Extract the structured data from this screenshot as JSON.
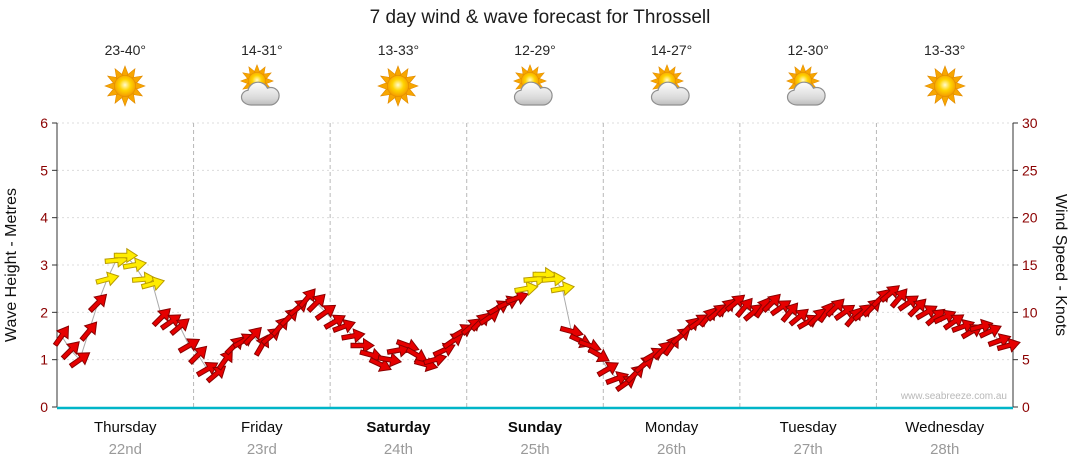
{
  "title": "7 day wind & wave forecast for Throssell",
  "watermark": "www.seabreeze.com.au",
  "days": [
    {
      "name": "Thursday",
      "date": "22nd",
      "temp": "23-40°",
      "icon": "sunny",
      "bold": false
    },
    {
      "name": "Friday",
      "date": "23rd",
      "temp": "14-31°",
      "icon": "partly-cloudy",
      "bold": false
    },
    {
      "name": "Saturday",
      "date": "24th",
      "temp": "13-33°",
      "icon": "sunny",
      "bold": true
    },
    {
      "name": "Sunday",
      "date": "25th",
      "temp": "12-29°",
      "icon": "partly-cloudy",
      "bold": true
    },
    {
      "name": "Monday",
      "date": "26th",
      "temp": "14-27°",
      "icon": "partly-cloudy",
      "bold": false
    },
    {
      "name": "Tuesday",
      "date": "27th",
      "temp": "12-30°",
      "icon": "partly-cloudy",
      "bold": false
    },
    {
      "name": "Wednesday",
      "date": "28th",
      "temp": "13-33°",
      "icon": "sunny",
      "bold": false
    }
  ],
  "chart_data": {
    "type": "scatter",
    "subtype": "wind-direction-arrows",
    "title": "7 day wind & wave forecast for Throssell",
    "left_axis": {
      "label": "Wave Height - Metres",
      "min": 0,
      "max": 6,
      "ticks": [
        0,
        1,
        2,
        3,
        4,
        5,
        6
      ]
    },
    "right_axis": {
      "label": "Wind Speed - Knots",
      "min": 0,
      "max": 30,
      "ticks": [
        0,
        5,
        10,
        15,
        20,
        25,
        30
      ]
    },
    "grid": {
      "vertical_day_separators": true,
      "horizontal_dotted": true
    },
    "colors": {
      "red_fill": "#e60000",
      "red_stroke": "#8a0000",
      "yellow_fill": "#ffec00",
      "yellow_stroke": "#b89b00",
      "baseline": "#00b5c8",
      "day_gridline": "#b8b8b8",
      "metre_gridline": "#dcdcdc",
      "tick_label": "#8b0000",
      "trend_line": "#aaaaaa"
    },
    "arrows_per_day": 15,
    "arrow_format": [
      "knots",
      "direction_deg(0=right,negative=up)",
      "color"
    ],
    "arrows": [
      [
        7.5,
        -55,
        "red"
      ],
      [
        6,
        -45,
        "red"
      ],
      [
        5,
        -35,
        "red"
      ],
      [
        8,
        -50,
        "red"
      ],
      [
        11,
        -45,
        "red"
      ],
      [
        13.5,
        -15,
        "yellow"
      ],
      [
        15.5,
        -5,
        "yellow"
      ],
      [
        16,
        0,
        "yellow"
      ],
      [
        15,
        -10,
        "yellow"
      ],
      [
        13.5,
        -5,
        "yellow"
      ],
      [
        13,
        -15,
        "yellow"
      ],
      [
        9.5,
        -45,
        "red"
      ],
      [
        9,
        -35,
        "red"
      ],
      [
        8.5,
        -40,
        "red"
      ],
      [
        6.5,
        -30,
        "red"
      ],
      [
        5.5,
        -45,
        "red"
      ],
      [
        4,
        -30,
        "red"
      ],
      [
        3.5,
        -40,
        "red"
      ],
      [
        5,
        -55,
        "red"
      ],
      [
        6.5,
        -45,
        "red"
      ],
      [
        7,
        -30,
        "red"
      ],
      [
        7.5,
        -45,
        "red"
      ],
      [
        6.5,
        -60,
        "red"
      ],
      [
        7.5,
        -40,
        "red"
      ],
      [
        8.5,
        -50,
        "red"
      ],
      [
        9.5,
        -45,
        "red"
      ],
      [
        10.5,
        -40,
        "red"
      ],
      [
        11.5,
        -50,
        "red"
      ],
      [
        11,
        -45,
        "red"
      ],
      [
        10,
        -35,
        "red"
      ],
      [
        9,
        -30,
        "red"
      ],
      [
        8.5,
        -20,
        "red"
      ],
      [
        7.5,
        -10,
        "red"
      ],
      [
        6.5,
        0,
        "red"
      ],
      [
        5.5,
        15,
        "red"
      ],
      [
        4.5,
        25,
        "red"
      ],
      [
        5,
        10,
        "red"
      ],
      [
        6,
        -10,
        "red"
      ],
      [
        6.5,
        20,
        "red"
      ],
      [
        5.5,
        30,
        "red"
      ],
      [
        4.5,
        15,
        "red"
      ],
      [
        5,
        -15,
        "red"
      ],
      [
        6,
        -25,
        "red"
      ],
      [
        7,
        -35,
        "red"
      ],
      [
        8,
        -30,
        "red"
      ],
      [
        8.5,
        -40,
        "red"
      ],
      [
        9,
        -45,
        "red"
      ],
      [
        9.5,
        -35,
        "red"
      ],
      [
        10.5,
        -30,
        "red"
      ],
      [
        11,
        -25,
        "red"
      ],
      [
        11.5,
        -20,
        "red"
      ],
      [
        12.5,
        -10,
        "yellow"
      ],
      [
        13.5,
        -5,
        "yellow"
      ],
      [
        14,
        0,
        "yellow"
      ],
      [
        13.5,
        -5,
        "yellow"
      ],
      [
        12.5,
        -10,
        "yellow"
      ],
      [
        8,
        15,
        "red"
      ],
      [
        7,
        25,
        "red"
      ],
      [
        6.5,
        20,
        "red"
      ],
      [
        5.5,
        30,
        "red"
      ],
      [
        4,
        -30,
        "red"
      ],
      [
        3,
        -20,
        "red"
      ],
      [
        2.5,
        -35,
        "red"
      ],
      [
        3.5,
        -45,
        "red"
      ],
      [
        4.5,
        -40,
        "red"
      ],
      [
        5.5,
        -30,
        "red"
      ],
      [
        6,
        -45,
        "red"
      ],
      [
        6.5,
        -55,
        "red"
      ],
      [
        7.5,
        -40,
        "red"
      ],
      [
        8.5,
        -45,
        "red"
      ],
      [
        9,
        -35,
        "red"
      ],
      [
        9.5,
        -50,
        "red"
      ],
      [
        10,
        -40,
        "red"
      ],
      [
        10.5,
        -45,
        "red"
      ],
      [
        11,
        -40,
        "red"
      ],
      [
        10.5,
        -50,
        "red"
      ],
      [
        10,
        -40,
        "red"
      ],
      [
        10.5,
        -55,
        "red"
      ],
      [
        11,
        -45,
        "red"
      ],
      [
        10.5,
        -35,
        "red"
      ],
      [
        10,
        -50,
        "red"
      ],
      [
        9.5,
        -40,
        "red"
      ],
      [
        9,
        -30,
        "red"
      ],
      [
        9.5,
        -45,
        "red"
      ],
      [
        10,
        -55,
        "red"
      ],
      [
        10.5,
        -45,
        "red"
      ],
      [
        10,
        -35,
        "red"
      ],
      [
        9.5,
        -50,
        "red"
      ],
      [
        10,
        -40,
        "red"
      ],
      [
        10.5,
        -45,
        "red"
      ],
      [
        11.5,
        -45,
        "red"
      ],
      [
        12,
        -40,
        "red"
      ],
      [
        11.5,
        -50,
        "red"
      ],
      [
        11,
        -35,
        "red"
      ],
      [
        10.5,
        -45,
        "red"
      ],
      [
        10,
        -30,
        "red"
      ],
      [
        9.5,
        -40,
        "red"
      ],
      [
        9.5,
        -25,
        "red"
      ],
      [
        9,
        -35,
        "red"
      ],
      [
        8.5,
        -20,
        "red"
      ],
      [
        8,
        -30,
        "red"
      ],
      [
        8.5,
        -15,
        "red"
      ],
      [
        8,
        -25,
        "red"
      ],
      [
        7,
        -20,
        "red"
      ],
      [
        6.5,
        -15,
        "red"
      ]
    ]
  }
}
